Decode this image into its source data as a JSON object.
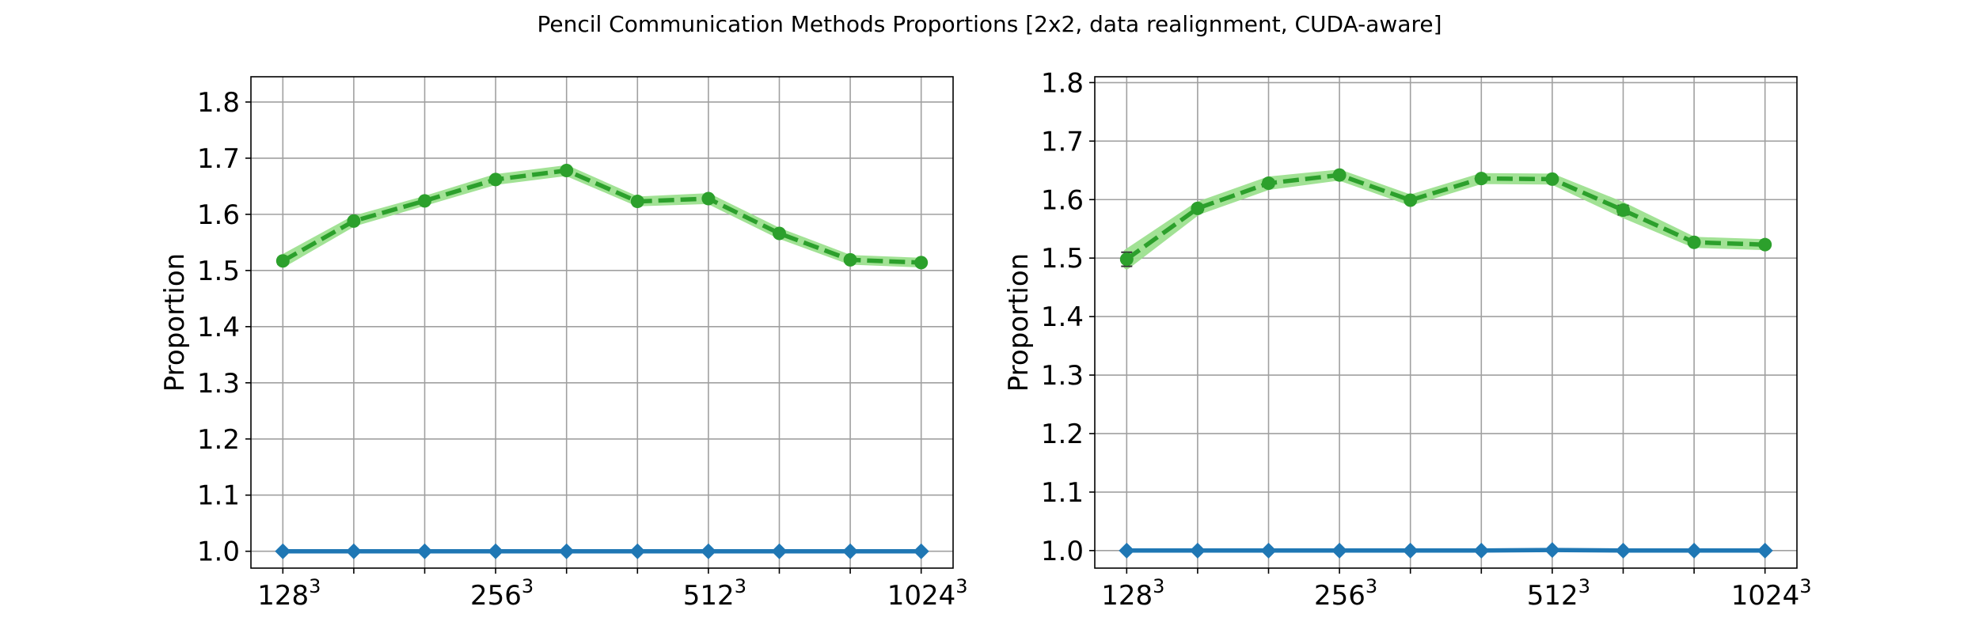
{
  "figure": {
    "title": "Pencil Communication Methods Proportions [2x2, data realignment, CUDA-aware]"
  },
  "colors": {
    "series_baseline": "#1f77b4",
    "series_other": "#2ca02c",
    "series_other_band": "#98df8a",
    "grid": "#a0a0a0"
  },
  "chart_data": [
    {
      "type": "line",
      "title": "",
      "xlabel": "",
      "ylabel": "Proportion",
      "grid": true,
      "ylim": [
        0.97,
        1.845
      ],
      "yticks": [
        1.0,
        1.1,
        1.2,
        1.3,
        1.4,
        1.5,
        1.6,
        1.7,
        1.8
      ],
      "ytick_labels": [
        "1.0",
        "1.1",
        "1.2",
        "1.3",
        "1.4",
        "1.5",
        "1.6",
        "1.7",
        "1.8"
      ],
      "x": [
        0,
        1,
        2,
        3,
        4,
        5,
        6,
        7,
        8,
        9
      ],
      "xlim": [
        -0.45,
        9.45
      ],
      "xticks_labeled": [
        {
          "x": 0,
          "base": "128",
          "exp": "3"
        },
        {
          "x": 3,
          "base": "256",
          "exp": "3"
        },
        {
          "x": 6,
          "base": "512",
          "exp": "3"
        },
        {
          "x": 9,
          "base": "1024",
          "exp": "3"
        }
      ],
      "series": [
        {
          "style": "solid",
          "marker": "diamond",
          "color": "#1f77b4",
          "values": [
            1.0,
            1.0,
            1.0,
            1.0,
            1.0,
            1.0,
            1.0,
            1.0,
            1.0,
            1.0
          ]
        },
        {
          "style": "dashed",
          "marker": "circle",
          "color": "#2ca02c",
          "values": [
            1.517,
            1.588,
            1.624,
            1.662,
            1.678,
            1.623,
            1.628,
            1.566,
            1.519,
            1.514
          ],
          "error": [
            0.006,
            0.004,
            0.003,
            0.004,
            0.004,
            0.003,
            0.004,
            0.004,
            0.003,
            0.003
          ]
        }
      ]
    },
    {
      "type": "line",
      "title": "",
      "xlabel": "",
      "ylabel": "Proportion",
      "grid": true,
      "ylim": [
        0.97,
        1.81
      ],
      "yticks": [
        1.0,
        1.1,
        1.2,
        1.3,
        1.4,
        1.5,
        1.6,
        1.7,
        1.8
      ],
      "ytick_labels": [
        "1.0",
        "1.1",
        "1.2",
        "1.3",
        "1.4",
        "1.5",
        "1.6",
        "1.7",
        "1.8"
      ],
      "x": [
        0,
        1,
        2,
        3,
        4,
        5,
        6,
        7,
        8,
        9
      ],
      "xlim": [
        -0.45,
        9.45
      ],
      "xticks_labeled": [
        {
          "x": 0,
          "base": "128",
          "exp": "3"
        },
        {
          "x": 3,
          "base": "256",
          "exp": "3"
        },
        {
          "x": 6,
          "base": "512",
          "exp": "3"
        },
        {
          "x": 9,
          "base": "1024",
          "exp": "3"
        }
      ],
      "series": [
        {
          "style": "solid",
          "marker": "diamond",
          "color": "#1f77b4",
          "values": [
            1.0,
            1.0,
            1.0,
            1.0,
            1.0,
            1.0,
            1.001,
            1.0,
            1.0,
            1.0
          ]
        },
        {
          "style": "dashed",
          "marker": "circle",
          "color": "#2ca02c",
          "values": [
            1.498,
            1.585,
            1.628,
            1.642,
            1.599,
            1.636,
            1.635,
            1.582,
            1.527,
            1.523
          ],
          "error": [
            0.012,
            0.006,
            0.006,
            0.004,
            0.004,
            0.004,
            0.004,
            0.008,
            0.004,
            0.004
          ]
        }
      ]
    }
  ]
}
